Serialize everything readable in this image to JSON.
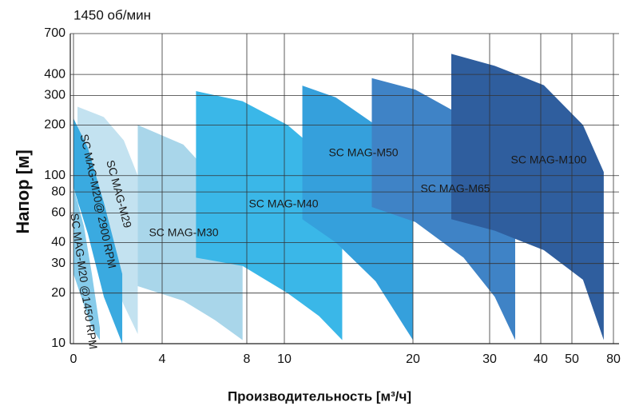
{
  "chart_data": {
    "type": "range-area",
    "subtitle": "1450 об/мин",
    "x_label": "Производительность [м³/ч]",
    "y_label": "Напор [м]",
    "xticks": [
      0,
      4,
      8,
      10,
      20,
      30,
      40,
      50,
      80
    ],
    "xlim": [
      0,
      80
    ],
    "ylim": [
      10,
      700
    ],
    "yticks": [
      10,
      20,
      30,
      40,
      60,
      80,
      100,
      200,
      300,
      400,
      700
    ],
    "yscale": "log",
    "grid": true,
    "series": [
      {
        "name": "SC MAG-M30",
        "color": "#a9d6ea",
        "x": [
          2.9,
          5.0,
          6.5,
          7.8
        ],
        "high": [
          200,
          153,
          95,
          62
        ],
        "low": [
          22,
          18,
          13.8,
          10.5
        ]
      },
      {
        "name": "SC MAG-M29",
        "color": "#c3e2f0",
        "x": [
          0.18,
          1.37,
          2.27,
          2.9
        ],
        "high": [
          257,
          223,
          162,
          100
        ],
        "low": [
          69,
          32.5,
          17,
          11.4
        ]
      },
      {
        "name": "SC MAG-M20@ 2900 RPM",
        "color": "#3aaae0",
        "x": [
          0,
          0.65,
          1.37,
          2.2
        ],
        "high": [
          219,
          146,
          69,
          26
        ],
        "low": [
          85,
          45,
          19,
          10
        ]
      },
      {
        "name": "SC MAG-M20 @1450 RPM",
        "color": "#86cbea",
        "x": [
          0,
          0.47,
          0.83,
          1.19
        ],
        "high": [
          85,
          50,
          26,
          12.4
        ],
        "low": [
          26,
          17,
          12.4,
          10.5
        ]
      },
      {
        "name": "SC MAG-M40",
        "color": "#3ab7e8",
        "x": [
          5.6,
          7.8,
          10.25,
          12.7,
          14.5
        ],
        "high": [
          318,
          277,
          200,
          138,
          100
        ],
        "low": [
          32.5,
          29,
          20,
          14.6,
          10.5
        ]
      },
      {
        "name": "SC MAG-M50",
        "color": "#35a0dc",
        "x": [
          11.4,
          14,
          17.1,
          20
        ],
        "high": [
          343,
          292,
          200,
          117
        ],
        "low": [
          55,
          40,
          23.5,
          10.5
        ]
      },
      {
        "name": "SC MAG-M65",
        "color": "#3f83c6",
        "x": [
          16.8,
          20.3,
          26.6,
          31,
          35
        ],
        "high": [
          380,
          325,
          225,
          130,
          69
        ],
        "low": [
          65,
          53,
          32.5,
          19,
          10.5
        ]
      },
      {
        "name": "SC MAG-M100",
        "color": "#2f5e9e",
        "x": [
          25,
          31,
          41,
          58,
          73
        ],
        "high": [
          530,
          450,
          345,
          200,
          105
        ],
        "low": [
          55,
          47,
          36,
          24,
          10.5
        ]
      }
    ]
  }
}
